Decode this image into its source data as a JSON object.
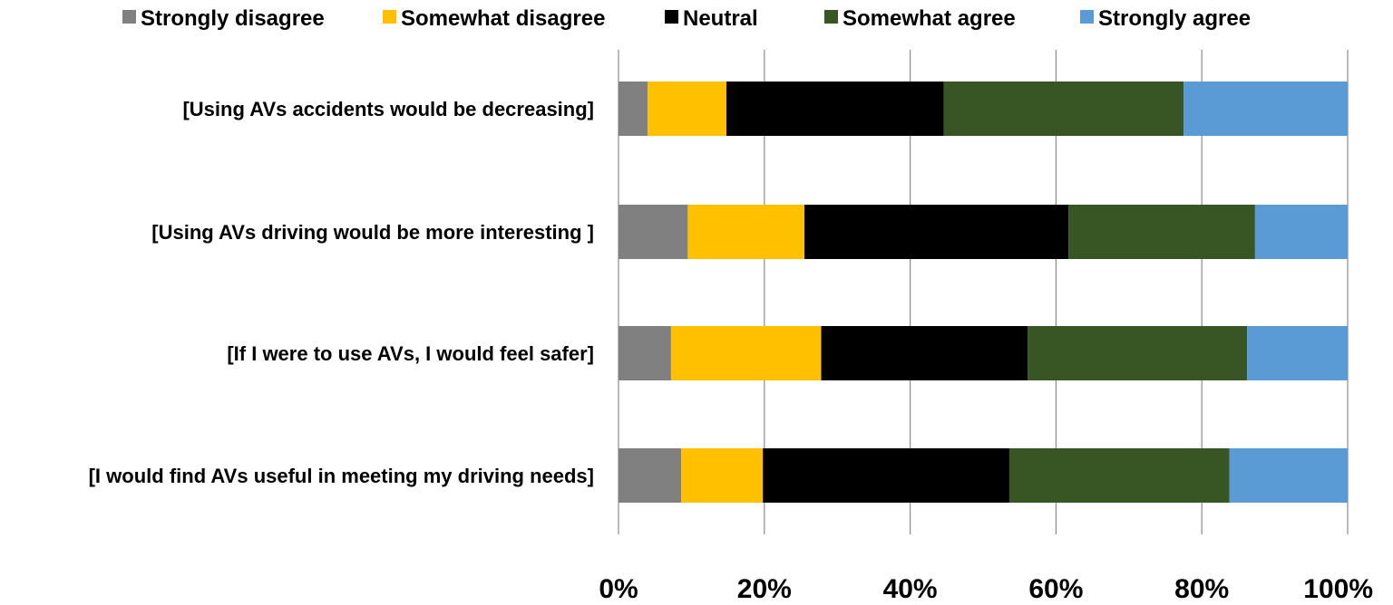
{
  "chart_data": {
    "type": "bar",
    "orientation": "horizontal",
    "stacked": true,
    "title": "",
    "xlabel": "",
    "ylabel": "",
    "xlim": [
      0,
      100
    ],
    "grid": true,
    "legend_position": "top",
    "categories": [
      "[Using AVs accidents would be decreasing]",
      "[Using AVs driving would be more interesting ]",
      "[If I were to use AVs,  I would feel safer]",
      "[I would find AVs useful in meeting my driving needs]"
    ],
    "ticks": [
      "0%",
      "20%",
      "40%",
      "60%",
      "80%",
      "100%"
    ],
    "series": [
      {
        "name": "Strongly disagree",
        "color": "#808080",
        "values": [
          4,
          9.5,
          7.2,
          8.6
        ]
      },
      {
        "name": "Somewhat disagree",
        "color": "#FFC000",
        "values": [
          10.8,
          16,
          20.6,
          11.2
        ]
      },
      {
        "name": "Neutral",
        "color": "#000000",
        "values": [
          29.8,
          36.2,
          28.3,
          33.8
        ]
      },
      {
        "name": "Somewhat agree",
        "color": "#375623",
        "values": [
          32.9,
          25.6,
          30.1,
          30.2
        ]
      },
      {
        "name": "Strongly agree",
        "color": "#5B9BD5",
        "values": [
          22.5,
          12.7,
          13.8,
          16.2
        ]
      }
    ]
  }
}
